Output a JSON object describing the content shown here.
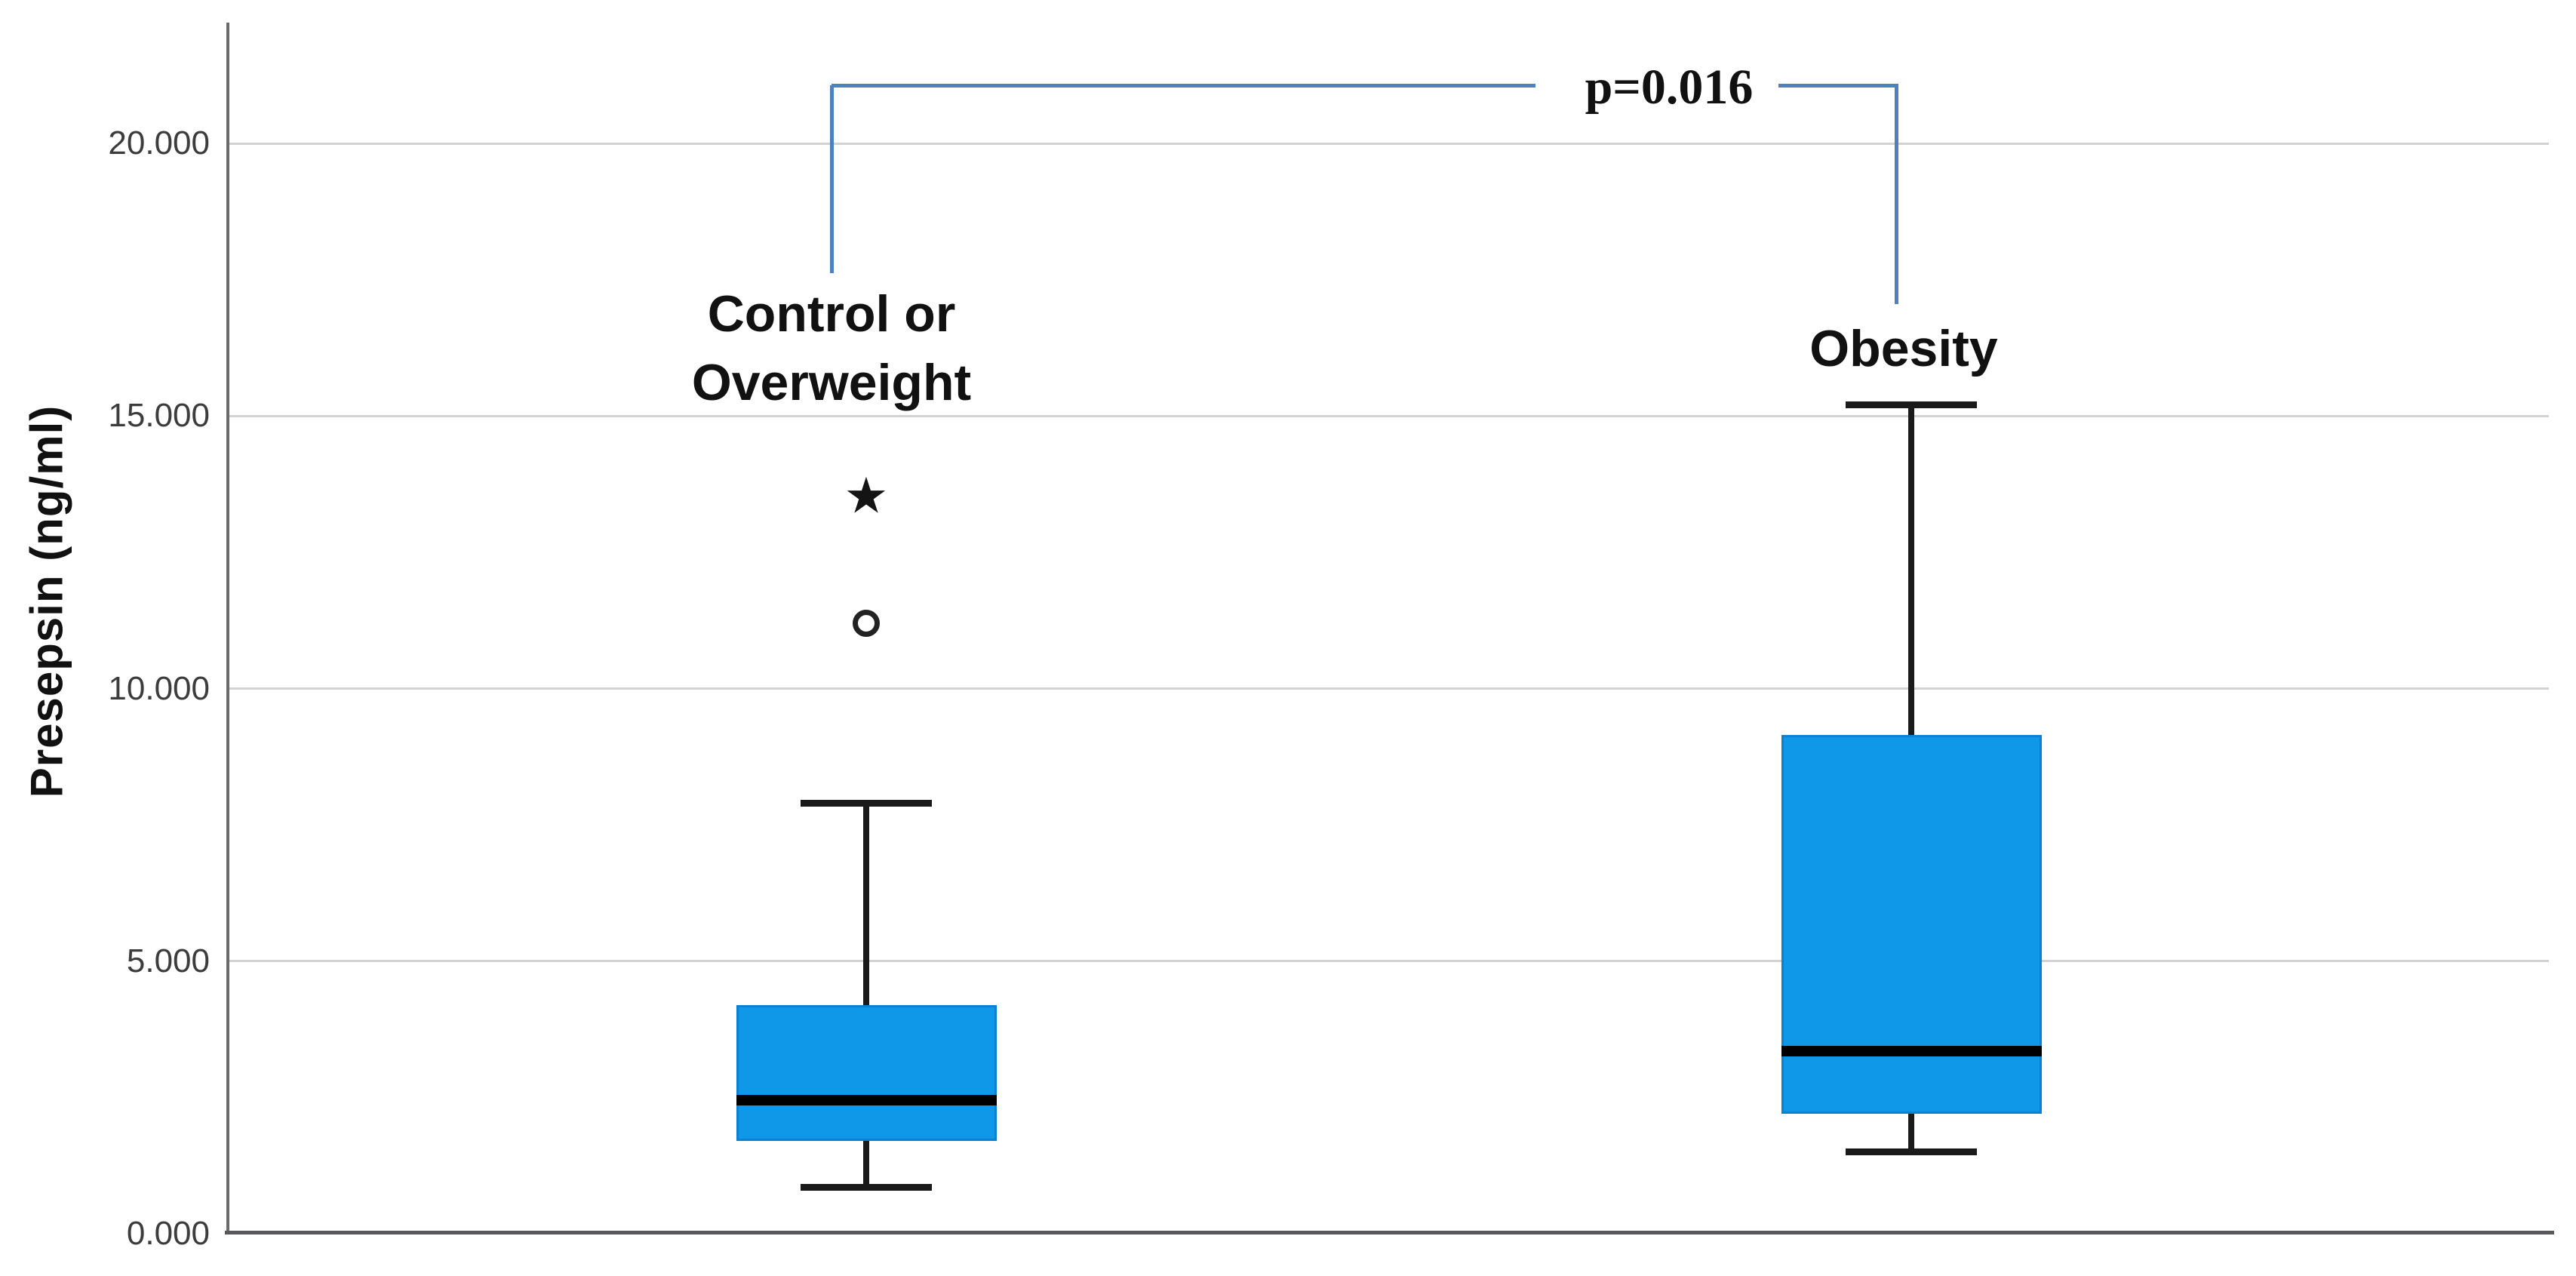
{
  "chart_data": {
    "type": "boxplot",
    "title": "",
    "ylabel": "Presepsin (ng/ml)",
    "xlabel": "",
    "ylim": [
      0,
      22.2
    ],
    "grid": "horizontal",
    "legend": "none",
    "yticks": {
      "values": [
        0,
        5,
        10,
        15,
        20
      ],
      "labels": [
        "0.000",
        "5.000",
        "10.000",
        "15.000",
        "20.000"
      ]
    },
    "groups": [
      {
        "name": "Control or Overweight",
        "label_lines": [
          "Control or",
          "Overweight"
        ],
        "whisker_low": 0.85,
        "q1": 1.7,
        "median": 2.45,
        "q3": 4.2,
        "whisker_high": 7.9,
        "outliers": [
          {
            "shape": "circle",
            "value": 11.2
          },
          {
            "shape": "star",
            "value": 13.5
          }
        ]
      },
      {
        "name": "Obesity",
        "label_lines": [
          "Obesity"
        ],
        "whisker_low": 1.5,
        "q1": 2.2,
        "median": 3.35,
        "q3": 9.15,
        "whisker_high": 15.2,
        "outliers": []
      }
    ],
    "annotation": {
      "text": "p=0.016"
    }
  },
  "colors": {
    "box_fill": "#0f97e8",
    "box_border": "#0c80d2",
    "median": "#000000",
    "whisker": "#1a1a1a",
    "grid": "#d2d2d2",
    "axis_left": "#6b6b6b",
    "axis_bottom": "#58585a",
    "bracket": "#4e81bd",
    "label": "#111111",
    "tick": "#3c3c3c"
  }
}
